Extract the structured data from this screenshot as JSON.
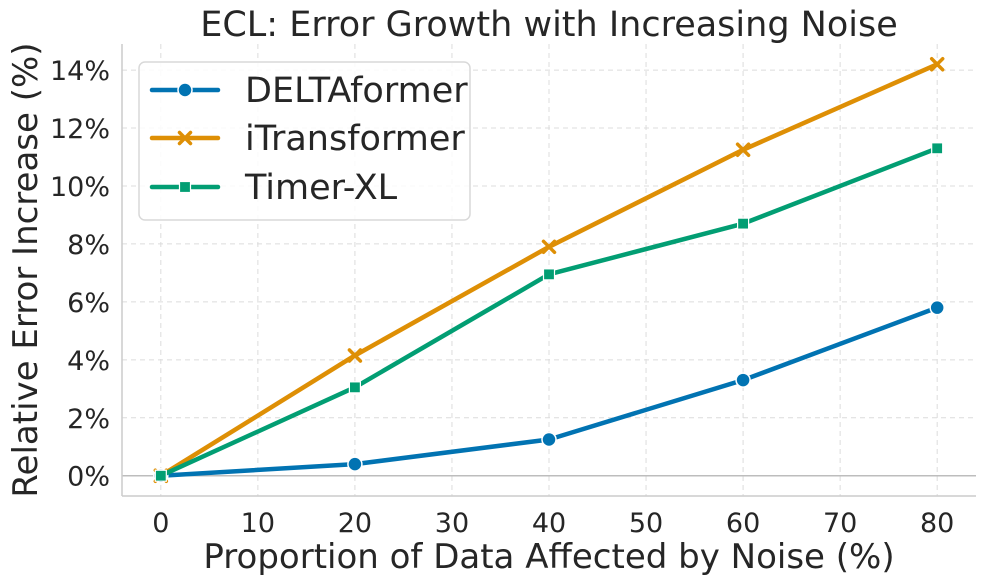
{
  "chart_data": {
    "type": "line",
    "title": "ECL: Error Growth with Increasing Noise",
    "xlabel": "Proportion of Data Affected by Noise (%)",
    "ylabel": "Relative Error Increase (%)",
    "x": [
      0,
      20,
      40,
      60,
      80
    ],
    "xlim": [
      -4,
      84
    ],
    "ylim": [
      -0.7,
      14.9
    ],
    "xticks": [
      0,
      10,
      20,
      30,
      40,
      50,
      60,
      70,
      80
    ],
    "xtick_labels": [
      "0",
      "10",
      "20",
      "30",
      "40",
      "50",
      "60",
      "70",
      "80"
    ],
    "yticks": [
      0,
      2,
      4,
      6,
      8,
      10,
      12,
      14
    ],
    "ytick_labels": [
      "0%",
      "2%",
      "4%",
      "6%",
      "8%",
      "10%",
      "12%",
      "14%"
    ],
    "grid": true,
    "legend_position": "top-left",
    "series": [
      {
        "name": "DELTAformer",
        "values": [
          0,
          0.4,
          1.25,
          3.3,
          5.8
        ],
        "color": "#0173b2",
        "marker": "circle"
      },
      {
        "name": "iTransformer",
        "values": [
          0,
          4.15,
          7.9,
          11.25,
          14.2
        ],
        "color": "#de8f05",
        "marker": "x"
      },
      {
        "name": "Timer-XL",
        "values": [
          0,
          3.05,
          6.95,
          8.7,
          11.3
        ],
        "color": "#029e73",
        "marker": "square"
      }
    ]
  }
}
